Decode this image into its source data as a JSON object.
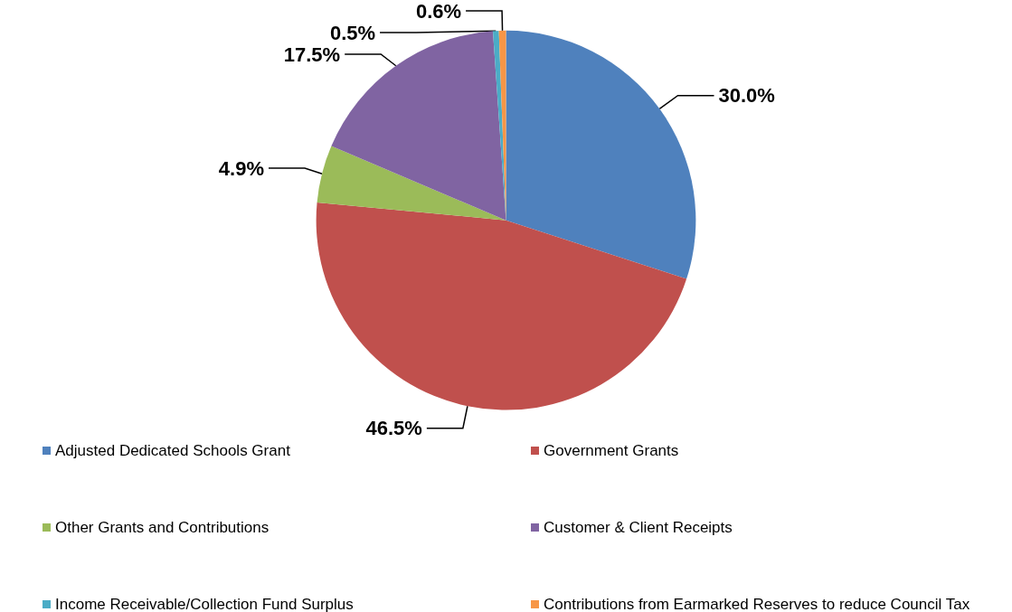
{
  "chart_data": {
    "type": "pie",
    "categories": [
      "Adjusted Dedicated Schools Grant",
      "Government Grants",
      "Other Grants and Contributions",
      "Customer & Client Receipts",
      "Income Receivable/Collection Fund Surplus",
      "Contributions from Earmarked Reserves to reduce Council Tax"
    ],
    "values": [
      30.0,
      46.5,
      4.9,
      17.5,
      0.5,
      0.6
    ],
    "value_labels": [
      "30.0%",
      "46.5%",
      "4.9%",
      "17.5%",
      "0.5%",
      "0.6%"
    ],
    "colors": [
      "#4f81bd",
      "#c0504d",
      "#9bbb59",
      "#8064a2",
      "#4bacc6",
      "#f79646"
    ],
    "legend": "bottom"
  }
}
